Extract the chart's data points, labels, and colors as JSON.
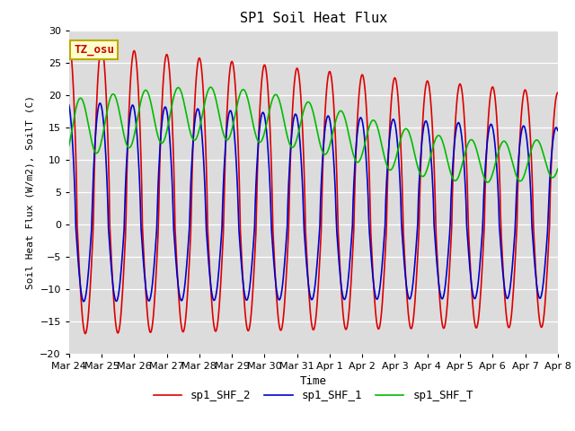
{
  "title": "SP1 Soil Heat Flux",
  "xlabel": "Time",
  "ylabel": "Soil Heat Flux (W/m2), SoilT (C)",
  "ylim": [
    -20,
    30
  ],
  "yticks": [
    -20,
    -15,
    -10,
    -5,
    0,
    5,
    10,
    15,
    20,
    25,
    30
  ],
  "bg_color": "#dcdcdc",
  "fig_color": "#ffffff",
  "grid_color": "#ffffff",
  "line_red": "#dd0000",
  "line_blue": "#0000cc",
  "line_green": "#00bb00",
  "line_width": 1.2,
  "legend_labels": [
    "sp1_SHF_2",
    "sp1_SHF_1",
    "sp1_SHF_T"
  ],
  "tz_label": "TZ_osu",
  "tz_text_color": "#cc0000",
  "tz_bg_color": "#ffffcc",
  "tz_border_color": "#bbaa00",
  "num_days": 15,
  "x_tick_labels": [
    "Mar 24",
    "Mar 25",
    "Mar 26",
    "Mar 27",
    "Mar 28",
    "Mar 29",
    "Mar 30",
    "Mar 31",
    "Apr 1",
    "Apr 2",
    "Apr 3",
    "Apr 4",
    "Apr 5",
    "Apr 6",
    "Apr 7",
    "Apr 8"
  ]
}
